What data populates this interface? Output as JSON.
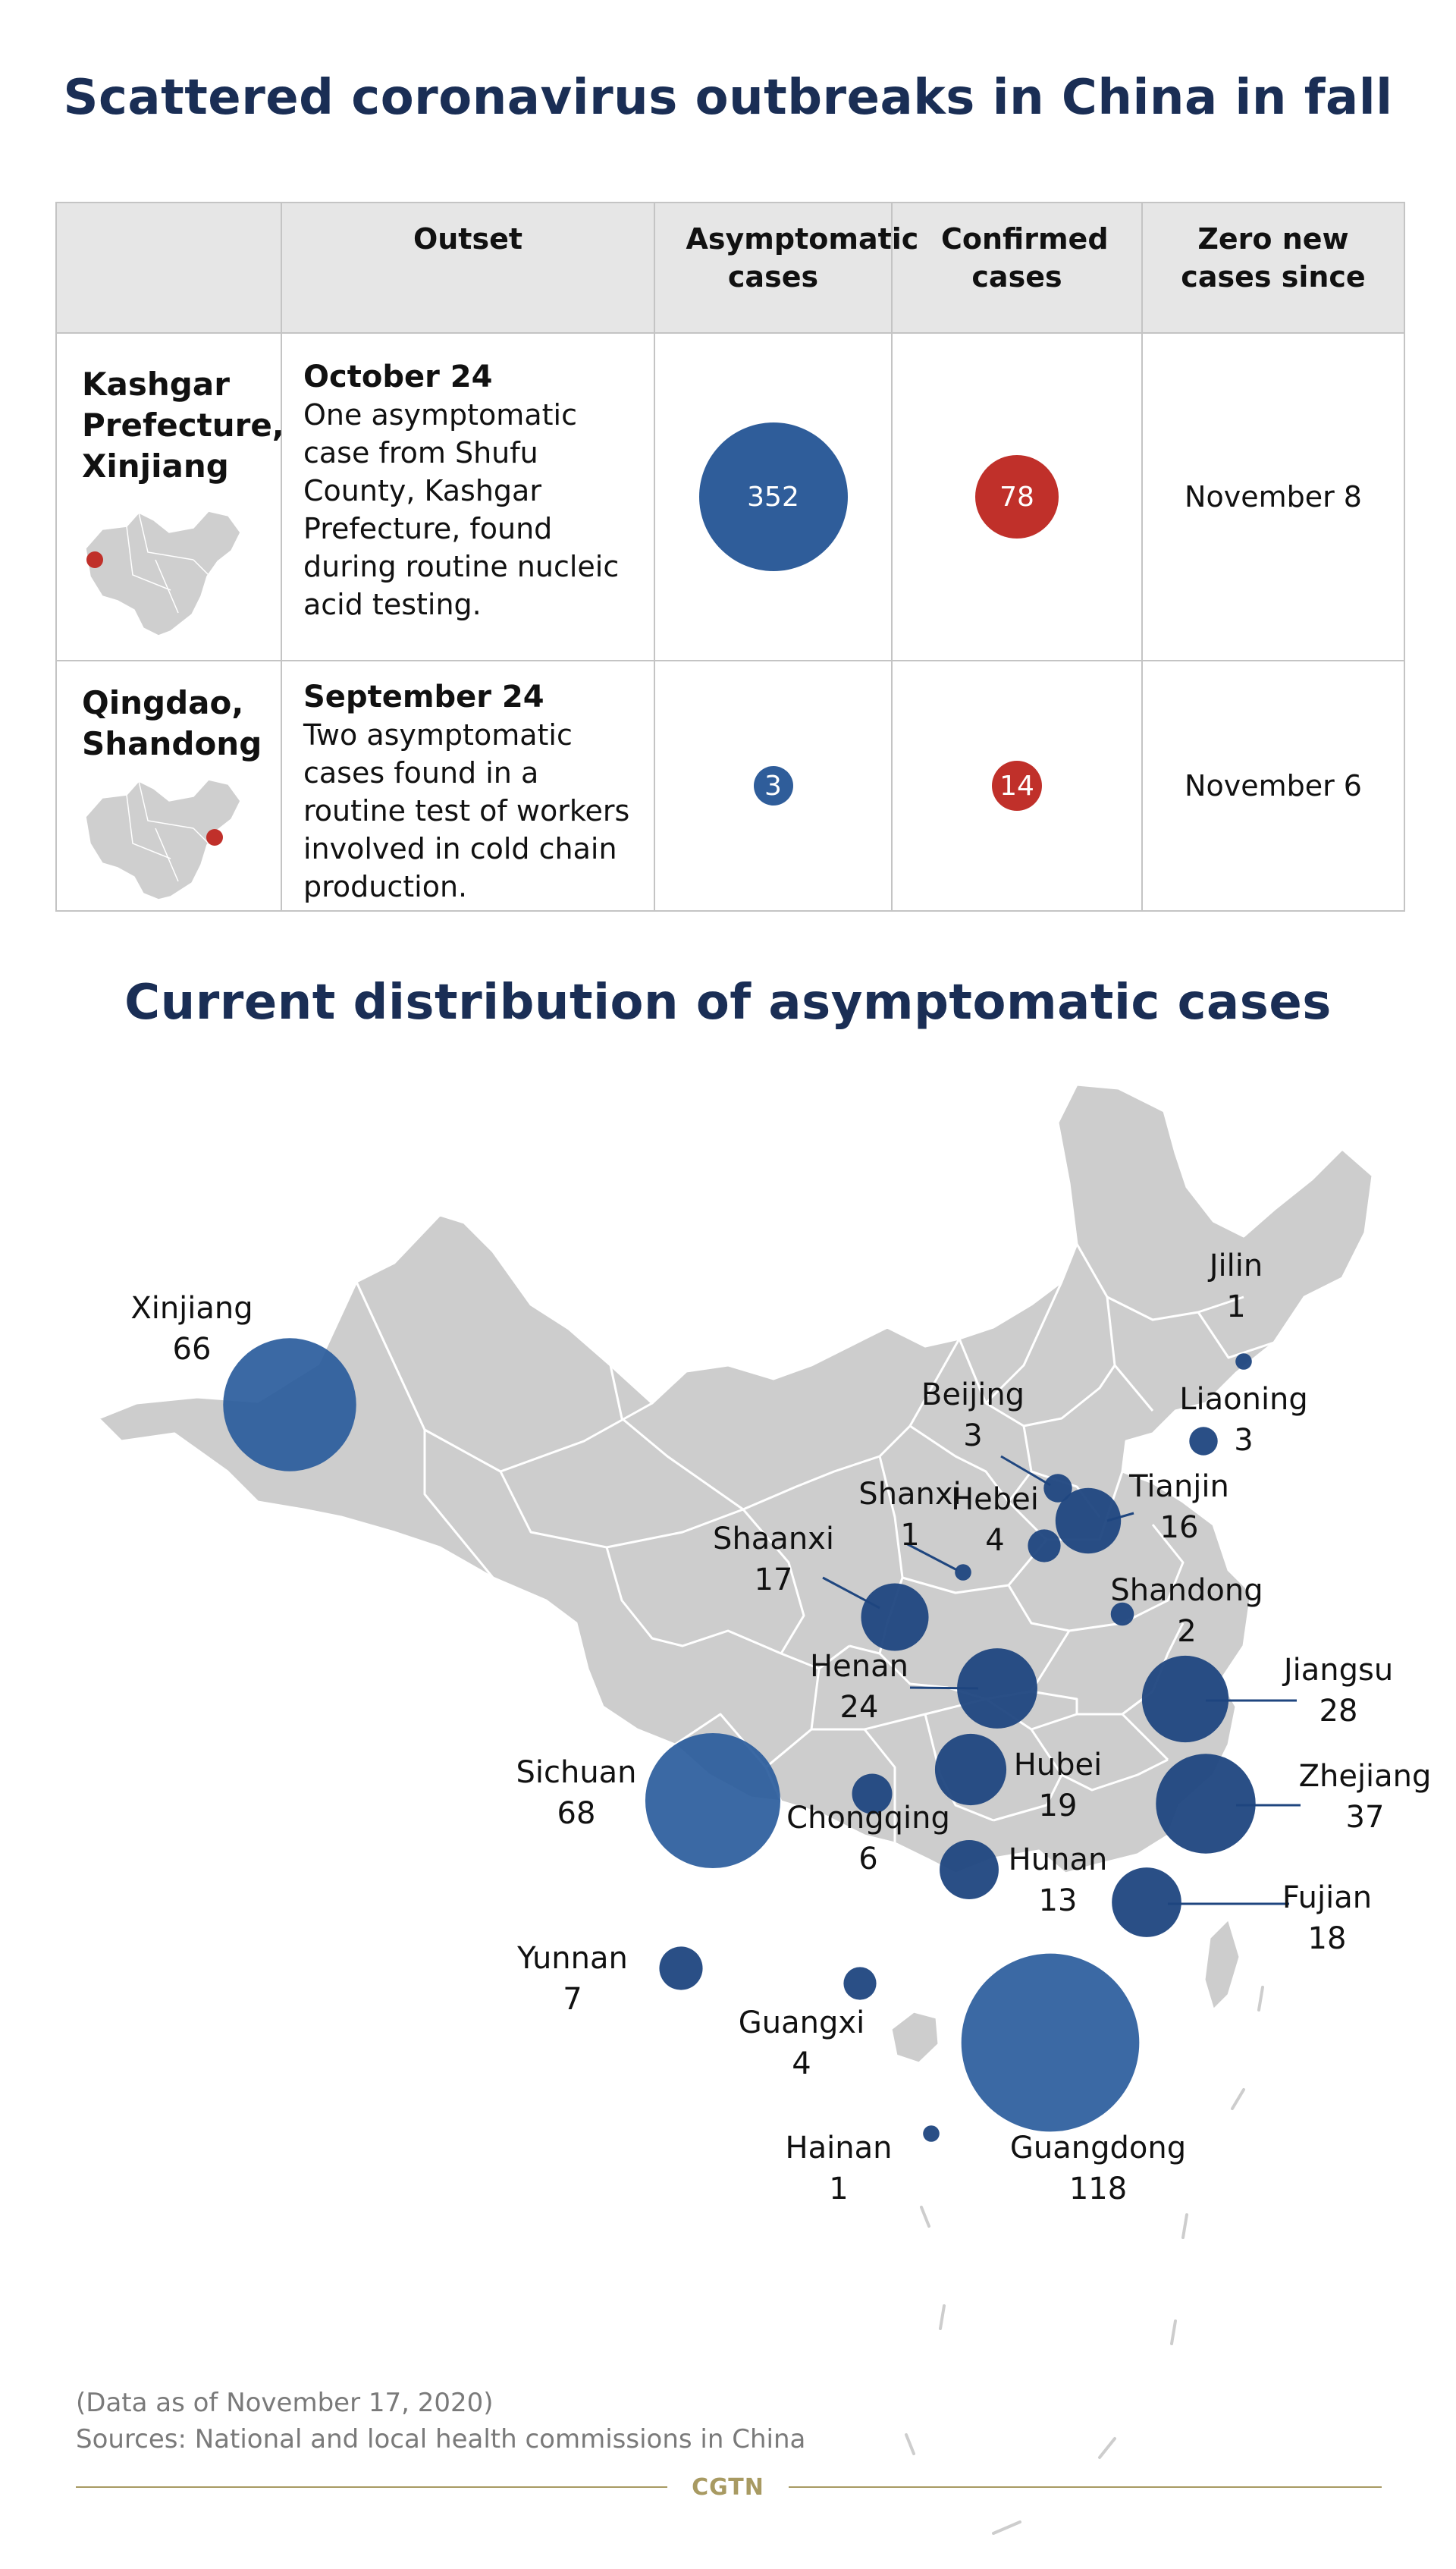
{
  "titles": {
    "top": "Scattered coronavirus outbreaks in China in fall",
    "map": "Current distribution of asymptomatic cases"
  },
  "table": {
    "headers": [
      "",
      "Outset",
      "Asymptomatic cases",
      "Confirmed cases",
      "Zero new cases since"
    ],
    "rows": [
      {
        "location": "Kashgar Prefecture, Xinjiang",
        "date": "October 24",
        "description": "One asymptomatic case from Shufu County, Kashgar Prefecture, found during routine nucleic acid testing.",
        "asymptomatic": "352",
        "confirmed": "78",
        "zero_since": "November 8"
      },
      {
        "location": "Qingdao, Shandong",
        "date": "September 24",
        "description": "Two asymptomatic cases found in a routine test of workers involved in cold chain production.",
        "asymptomatic": "3",
        "confirmed": "14",
        "zero_since": "November 6"
      }
    ]
  },
  "chart_data": {
    "type": "bubble-map",
    "title": "Current distribution of asymptomatic cases",
    "series": [
      {
        "name": "Xinjiang",
        "value": 66
      },
      {
        "name": "Jilin",
        "value": 1
      },
      {
        "name": "Liaoning",
        "value": 3
      },
      {
        "name": "Beijing",
        "value": 3
      },
      {
        "name": "Tianjin",
        "value": 16
      },
      {
        "name": "Hebei",
        "value": 4
      },
      {
        "name": "Shanxi",
        "value": 1
      },
      {
        "name": "Shaanxi",
        "value": 17
      },
      {
        "name": "Shandong",
        "value": 2
      },
      {
        "name": "Henan",
        "value": 24
      },
      {
        "name": "Jiangsu",
        "value": 28
      },
      {
        "name": "Sichuan",
        "value": 68
      },
      {
        "name": "Chongqing",
        "value": 6
      },
      {
        "name": "Hubei",
        "value": 19
      },
      {
        "name": "Zhejiang",
        "value": 37
      },
      {
        "name": "Hunan",
        "value": 13
      },
      {
        "name": "Fujian",
        "value": 18
      },
      {
        "name": "Yunnan",
        "value": 7
      },
      {
        "name": "Guangxi",
        "value": 4
      },
      {
        "name": "Guangdong",
        "value": 118
      },
      {
        "name": "Hainan",
        "value": 1
      }
    ],
    "colors": {
      "bubble": "#1f467f",
      "bubble_large": "#2a5c9c",
      "land": "#cdcdcd",
      "border": "#ffffff"
    }
  },
  "footer": {
    "note": "(Data as of November 17, 2020)",
    "sources": "Sources: National and local health commissions in China",
    "brand": "CGTN"
  }
}
